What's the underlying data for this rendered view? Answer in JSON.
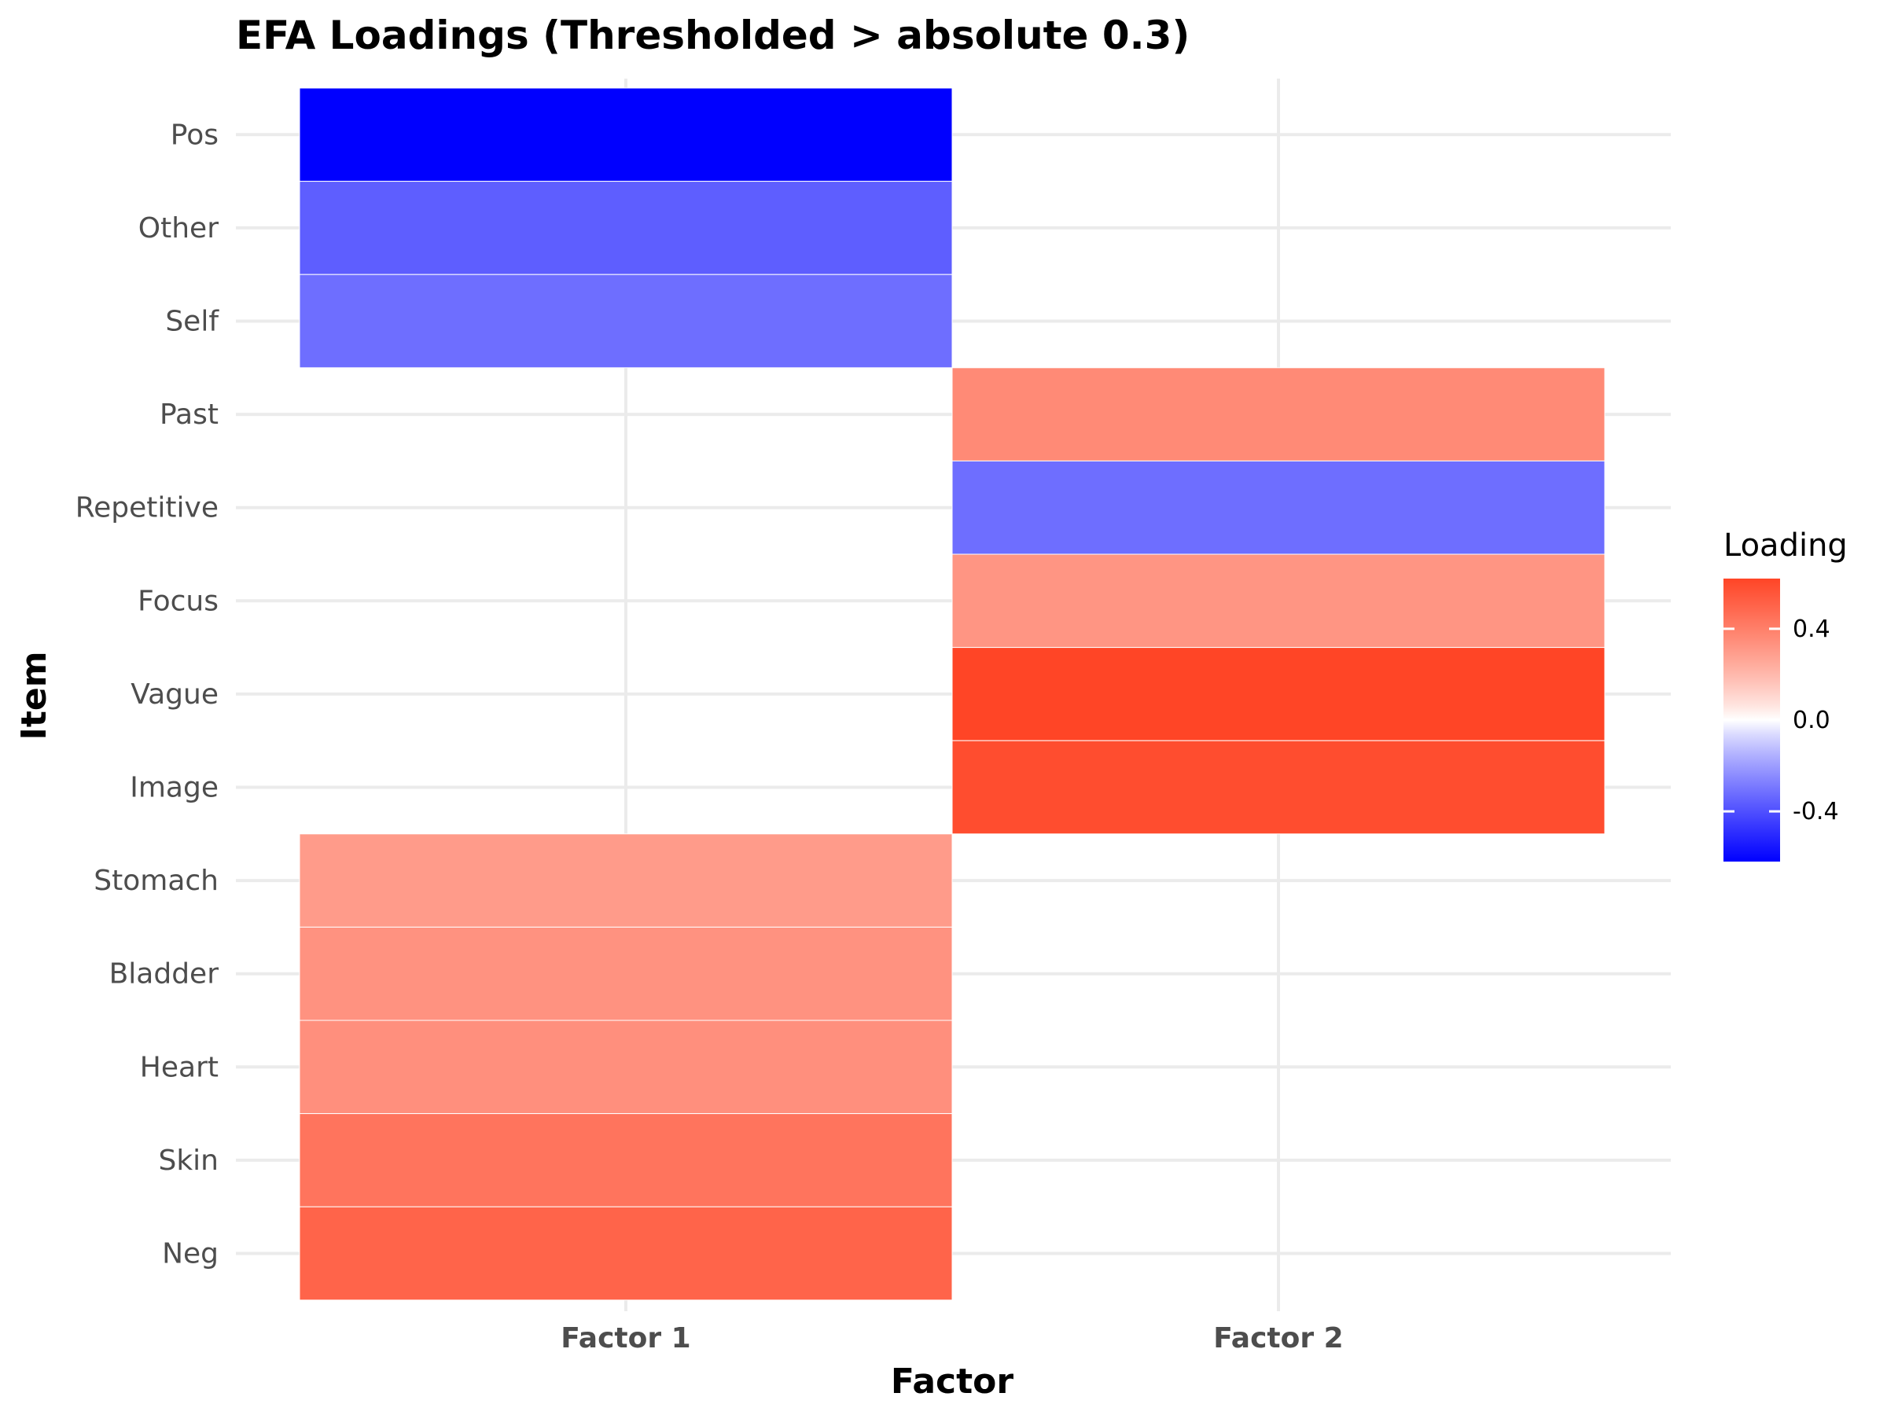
{
  "chart_data": {
    "type": "heatmap",
    "title": "EFA Loadings (Thresholded > absolute 0.3)",
    "xlabel": "Factor",
    "ylabel": "Item",
    "x_categories": [
      "Factor 1",
      "Factor 2"
    ],
    "y_categories": [
      "Pos",
      "Other",
      "Self",
      "Past",
      "Repetitive",
      "Focus",
      "Vague",
      "Image",
      "Stomach",
      "Bladder",
      "Heart",
      "Skin",
      "Neg"
    ],
    "cells": [
      {
        "item": "Pos",
        "factor": "Factor 1",
        "value": -0.62
      },
      {
        "item": "Other",
        "factor": "Factor 1",
        "value": -0.36
      },
      {
        "item": "Self",
        "factor": "Factor 1",
        "value": -0.32
      },
      {
        "item": "Past",
        "factor": "Factor 2",
        "value": 0.36
      },
      {
        "item": "Repetitive",
        "factor": "Factor 2",
        "value": -0.32
      },
      {
        "item": "Focus",
        "factor": "Factor 2",
        "value": 0.32
      },
      {
        "item": "Vague",
        "factor": "Factor 2",
        "value": 0.62
      },
      {
        "item": "Image",
        "factor": "Factor 2",
        "value": 0.59
      },
      {
        "item": "Stomach",
        "factor": "Factor 1",
        "value": 0.3
      },
      {
        "item": "Bladder",
        "factor": "Factor 1",
        "value": 0.33
      },
      {
        "item": "Heart",
        "factor": "Factor 1",
        "value": 0.34
      },
      {
        "item": "Skin",
        "factor": "Factor 1",
        "value": 0.44
      },
      {
        "item": "Neg",
        "factor": "Factor 1",
        "value": 0.5
      }
    ],
    "color_scale": {
      "low": "#0000ff",
      "mid": "#ffffff",
      "high": "#ff4526",
      "limits": [
        -0.62,
        0.62
      ]
    },
    "legend": {
      "title": "Loading",
      "breaks": [
        0.4,
        0.0,
        -0.4
      ],
      "labels": [
        "0.4",
        "0.0",
        "-0.4"
      ],
      "position": "right"
    },
    "grid": true
  }
}
